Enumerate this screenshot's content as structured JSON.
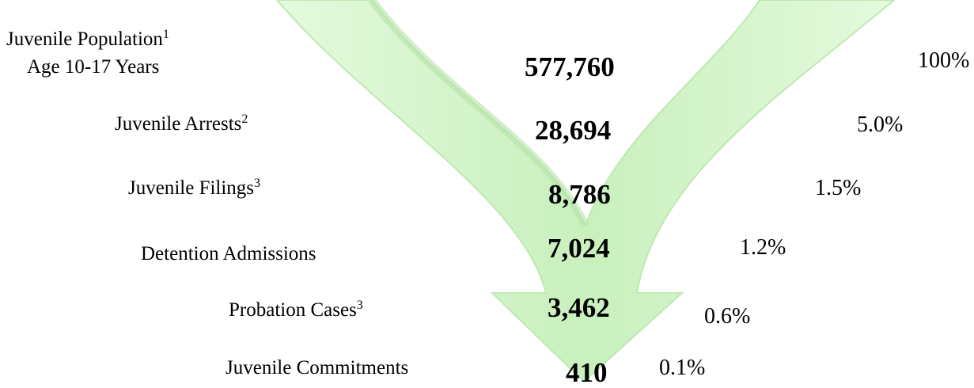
{
  "stages": [
    {
      "label": "Juvenile Population",
      "note": "1",
      "sublabel": "Age 10-17 Years",
      "count": "577,760",
      "percent": "100%"
    },
    {
      "label": "Juvenile Arrests",
      "note": "2",
      "count": "28,694",
      "percent": "5.0%"
    },
    {
      "label": "Juvenile Filings",
      "note": "3",
      "count": "8,786",
      "percent": "1.5%"
    },
    {
      "label": "Detention Admissions",
      "count": "7,024",
      "percent": "1.2%"
    },
    {
      "label": "Probation Cases",
      "note": "3",
      "count": "3,462",
      "percent": "0.6%"
    },
    {
      "label": "Juvenile Commitments",
      "count": "410",
      "percent": "0.1%"
    }
  ]
}
